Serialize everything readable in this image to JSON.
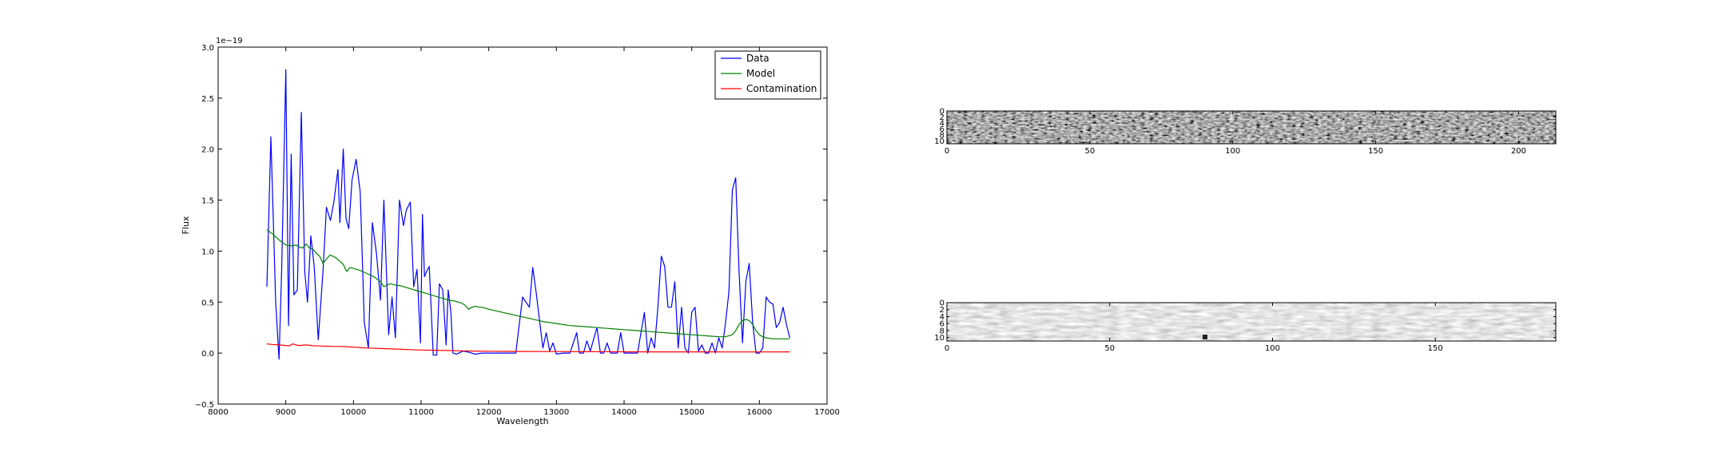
{
  "chart_data": [
    {
      "type": "line",
      "title": "",
      "xlabel": "Wavelength",
      "ylabel": "Flux",
      "xlim": [
        8000,
        17000
      ],
      "ylim": [
        -0.5,
        3.0
      ],
      "y_scale_note": "1e−19",
      "x_ticks": [
        8000,
        9000,
        10000,
        11000,
        12000,
        13000,
        14000,
        15000,
        16000,
        17000
      ],
      "y_ticks": [
        -0.5,
        0.0,
        0.5,
        1.0,
        1.5,
        2.0,
        2.5,
        3.0
      ],
      "grid": false,
      "legend_position": "top-right",
      "series": [
        {
          "name": "Data",
          "color": "#0000ff",
          "x": [
            8720,
            8780,
            8850,
            8900,
            8940,
            9000,
            9040,
            9080,
            9120,
            9170,
            9230,
            9280,
            9320,
            9370,
            9420,
            9480,
            9550,
            9600,
            9660,
            9710,
            9770,
            9800,
            9850,
            9890,
            9930,
            9980,
            10040,
            10100,
            10160,
            10220,
            10280,
            10340,
            10400,
            10450,
            10520,
            10570,
            10620,
            10680,
            10740,
            10780,
            10840,
            10890,
            10940,
            10990,
            11020,
            11050,
            11080,
            11120,
            11180,
            11230,
            11270,
            11320,
            11370,
            11400,
            11440,
            11470,
            11520,
            11560,
            11620,
            11700,
            11800,
            11900,
            12000,
            12200,
            12400,
            12500,
            12600,
            12650,
            12700,
            12800,
            12850,
            12900,
            12950,
            13000,
            13100,
            13200,
            13300,
            13340,
            13400,
            13450,
            13500,
            13600,
            13650,
            13700,
            13750,
            13800,
            13900,
            13950,
            14000,
            14100,
            14200,
            14300,
            14350,
            14400,
            14450,
            14500,
            14550,
            14600,
            14650,
            14700,
            14750,
            14800,
            14850,
            14900,
            14950,
            15000,
            15050,
            15100,
            15150,
            15200,
            15250,
            15300,
            15350,
            15400,
            15450,
            15500,
            15550,
            15600,
            15650,
            15700,
            15750,
            15800,
            15850,
            15900,
            15950,
            16000,
            16050,
            16100,
            16150,
            16200,
            16250,
            16300,
            16350,
            16400,
            16450
          ],
          "y": [
            0.65,
            2.12,
            0.5,
            -0.06,
            0.85,
            2.78,
            0.27,
            1.95,
            0.57,
            0.62,
            2.36,
            0.8,
            0.5,
            1.15,
            0.85,
            0.13,
            0.8,
            1.43,
            1.3,
            1.48,
            1.8,
            1.28,
            2.0,
            1.32,
            1.22,
            1.7,
            1.9,
            1.58,
            0.3,
            0.05,
            1.28,
            0.98,
            0.52,
            1.5,
            0.18,
            0.55,
            0.15,
            1.5,
            1.25,
            1.4,
            1.48,
            0.65,
            0.82,
            0.1,
            1.36,
            0.75,
            0.8,
            0.85,
            -0.02,
            -0.02,
            0.68,
            0.62,
            0.08,
            0.62,
            0.4,
            0.0,
            -0.01,
            0.0,
            0.02,
            0.01,
            -0.01,
            0.0,
            0.0,
            0.0,
            0.0,
            0.55,
            0.45,
            0.84,
            0.6,
            0.05,
            0.2,
            0.02,
            0.1,
            -0.01,
            0.0,
            0.0,
            0.2,
            0.0,
            0.0,
            0.12,
            0.02,
            0.25,
            0.0,
            0.0,
            0.1,
            0.0,
            0.0,
            0.2,
            0.0,
            0.0,
            0.0,
            0.4,
            0.0,
            0.15,
            0.05,
            0.45,
            0.95,
            0.85,
            0.45,
            0.45,
            0.7,
            0.05,
            0.45,
            0.05,
            0.0,
            0.4,
            0.45,
            0.02,
            0.08,
            0.0,
            0.0,
            0.1,
            0.0,
            0.15,
            0.05,
            0.3,
            0.6,
            1.6,
            1.72,
            0.8,
            0.1,
            0.7,
            0.88,
            0.3,
            0.0,
            0.0,
            0.05,
            0.55,
            0.5,
            0.48,
            0.25,
            0.3,
            0.45,
            0.28,
            0.15
          ]
        },
        {
          "name": "Model",
          "color": "#008000",
          "x": [
            8720,
            8800,
            8900,
            9000,
            9100,
            9150,
            9200,
            9250,
            9300,
            9350,
            9400,
            9450,
            9500,
            9550,
            9600,
            9650,
            9700,
            9750,
            9800,
            9850,
            9900,
            9950,
            10000,
            10100,
            10200,
            10300,
            10400,
            10450,
            10500,
            10550,
            10600,
            10700,
            10800,
            10900,
            11000,
            11100,
            11200,
            11300,
            11400,
            11500,
            11550,
            11600,
            11650,
            11700,
            11750,
            11800,
            11850,
            11900,
            12000,
            12200,
            12400,
            12600,
            12800,
            13000,
            13200,
            13400,
            13600,
            13800,
            14000,
            14200,
            14400,
            14600,
            14800,
            15000,
            15200,
            15400,
            15500,
            15600,
            15650,
            15700,
            15750,
            15800,
            15850,
            15900,
            15950,
            16000,
            16050,
            16100,
            16200,
            16300,
            16450
          ],
          "y": [
            1.21,
            1.17,
            1.11,
            1.06,
            1.05,
            1.06,
            1.04,
            1.03,
            1.07,
            1.03,
            1.02,
            0.98,
            0.95,
            0.88,
            0.92,
            0.96,
            0.95,
            0.93,
            0.9,
            0.87,
            0.8,
            0.84,
            0.83,
            0.81,
            0.78,
            0.75,
            0.7,
            0.65,
            0.67,
            0.68,
            0.67,
            0.66,
            0.64,
            0.62,
            0.6,
            0.58,
            0.56,
            0.54,
            0.52,
            0.51,
            0.5,
            0.49,
            0.47,
            0.43,
            0.45,
            0.46,
            0.45,
            0.45,
            0.43,
            0.4,
            0.37,
            0.34,
            0.31,
            0.29,
            0.27,
            0.26,
            0.25,
            0.24,
            0.23,
            0.22,
            0.21,
            0.2,
            0.19,
            0.18,
            0.17,
            0.16,
            0.16,
            0.18,
            0.22,
            0.28,
            0.32,
            0.33,
            0.32,
            0.28,
            0.22,
            0.18,
            0.16,
            0.15,
            0.14,
            0.14,
            0.14
          ]
        },
        {
          "name": "Contamination",
          "color": "#ff0000",
          "x": [
            8720,
            8800,
            8900,
            9000,
            9050,
            9100,
            9150,
            9200,
            9300,
            9400,
            9500,
            9600,
            9700,
            9800,
            9900,
            9950,
            10000,
            10100,
            10200,
            10400,
            10600,
            10800,
            11000,
            11200,
            11400,
            11600,
            11800,
            12000,
            12500,
            13000,
            13500,
            14000,
            14500,
            15000,
            15500,
            16000,
            16450
          ],
          "y": [
            0.09,
            0.085,
            0.08,
            0.075,
            0.07,
            0.09,
            0.08,
            0.075,
            0.08,
            0.072,
            0.07,
            0.068,
            0.065,
            0.065,
            0.063,
            0.06,
            0.058,
            0.055,
            0.05,
            0.045,
            0.04,
            0.035,
            0.03,
            0.028,
            0.025,
            0.022,
            0.02,
            0.018,
            0.016,
            0.015,
            0.014,
            0.013,
            0.012,
            0.012,
            0.011,
            0.011,
            0.012
          ]
        }
      ]
    },
    {
      "type": "heatmap",
      "title": "",
      "xlabel": "",
      "ylabel": "",
      "xlim": [
        0,
        213
      ],
      "ylim": [
        0,
        11
      ],
      "x_ticks": [
        0,
        50,
        100,
        150,
        200
      ],
      "y_ticks": [
        0,
        2,
        4,
        6,
        8,
        10
      ],
      "colormap": "gray",
      "grid": false
    },
    {
      "type": "heatmap",
      "title": "",
      "xlabel": "",
      "ylabel": "",
      "xlim": [
        0,
        187
      ],
      "ylim": [
        0,
        11
      ],
      "x_ticks": [
        0,
        50,
        100,
        150
      ],
      "y_ticks": [
        0,
        2,
        4,
        6,
        8,
        10
      ],
      "colormap": "gray",
      "grid": false
    }
  ]
}
